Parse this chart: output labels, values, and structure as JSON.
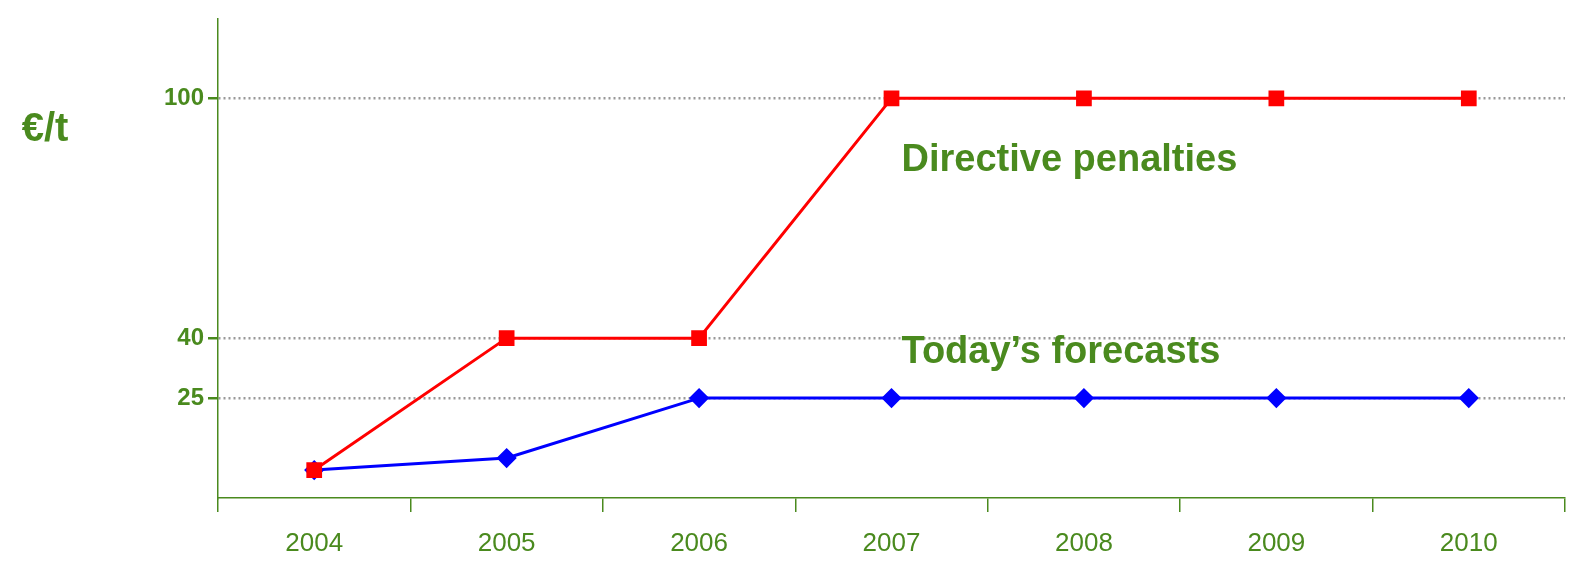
{
  "chart_data": {
    "type": "line",
    "ylabel": "€/t",
    "categories": [
      "2004",
      "2005",
      "2006",
      "2007",
      "2008",
      "2009",
      "2010"
    ],
    "series": [
      {
        "name": "Directive penalties",
        "color": "#ff0000",
        "marker": "square",
        "values": [
          7,
          40,
          40,
          100,
          100,
          100,
          100
        ]
      },
      {
        "name": "Today’s forecasts",
        "color": "#0000ff",
        "marker": "diamond",
        "values": [
          7,
          10,
          25,
          25,
          25,
          25,
          25
        ]
      }
    ],
    "ylim": [
      0,
      120
    ],
    "yticks": [
      25,
      40,
      100
    ],
    "grid": "y",
    "legend": false,
    "line_style": "solid"
  }
}
